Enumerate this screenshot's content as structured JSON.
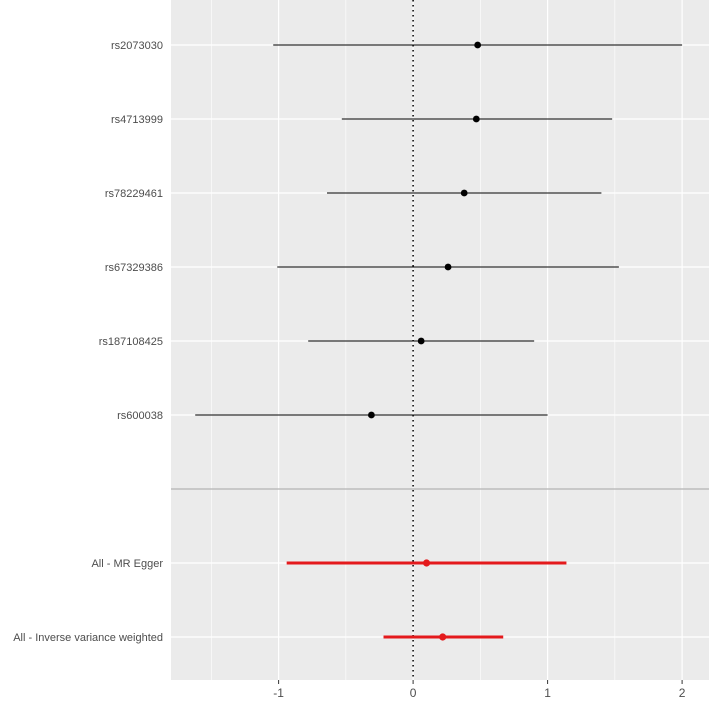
{
  "chart_data": {
    "type": "forest",
    "xlim": [
      -1.8,
      2.2
    ],
    "x_ticks": [
      -1,
      0,
      1,
      2
    ],
    "x_tick_labels": [
      "-1",
      "0",
      "1",
      "2"
    ],
    "reference_line": 0,
    "grid": true,
    "colors": {
      "panel": "#ebebeb",
      "grid": "#ffffff",
      "snp": "#000000",
      "summary": "#e41a1c",
      "separator": "#bdbdbd",
      "text": "#4d4d4d"
    },
    "snps": [
      {
        "label": "rs2073030",
        "estimate": 0.48,
        "lower": -1.04,
        "upper": 2.0
      },
      {
        "label": "rs4713999",
        "estimate": 0.47,
        "lower": -0.53,
        "upper": 1.48
      },
      {
        "label": "rs78229461",
        "estimate": 0.38,
        "lower": -0.64,
        "upper": 1.4
      },
      {
        "label": "rs67329386",
        "estimate": 0.26,
        "lower": -1.01,
        "upper": 1.53
      },
      {
        "label": "rs187108425",
        "estimate": 0.06,
        "lower": -0.78,
        "upper": 0.9
      },
      {
        "label": "rs600038",
        "estimate": -0.31,
        "lower": -1.62,
        "upper": 1.0
      }
    ],
    "summaries": [
      {
        "label": "All - MR Egger",
        "estimate": 0.1,
        "lower": -0.94,
        "upper": 1.14
      },
      {
        "label": "All - Inverse variance weighted",
        "estimate": 0.22,
        "lower": -0.22,
        "upper": 0.67
      }
    ]
  }
}
